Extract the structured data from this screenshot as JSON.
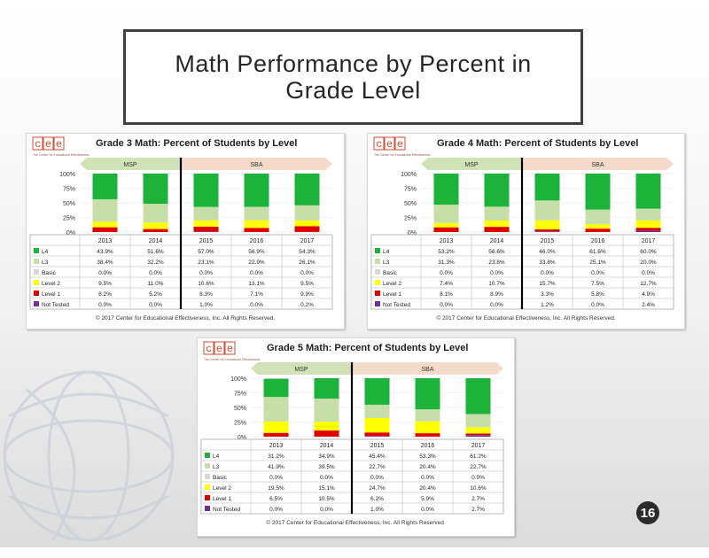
{
  "slide": {
    "title": "Math Performance by Percent in Grade Level",
    "page_number": "16"
  },
  "logo": {
    "letters": [
      "c",
      "e",
      "e"
    ],
    "tagline": "The Center for Educational Effectiveness"
  },
  "colors": {
    "L4": "#1db33b",
    "L3": "#c6dea8",
    "Basic": "#d8d8d8",
    "Level 2": "#ffff00",
    "Level 1": "#e00000",
    "Not Tested": "#7030a0",
    "msp_arrow": "#cfe3b6",
    "sba_arrow": "#f5d9c9"
  },
  "chart_data": [
    {
      "type": "bar",
      "title": "Grade 3 Math: Percent of Students by Level",
      "categories": [
        "2013",
        "2014",
        "2015",
        "2016",
        "2017"
      ],
      "ylim": [
        0,
        100
      ],
      "yticks": [
        "100%",
        "75%",
        "50%",
        "25%",
        "0%"
      ],
      "bands": [
        {
          "label": "MSP",
          "count": 2
        },
        {
          "label": "SBA",
          "count": 3
        }
      ],
      "series": [
        {
          "name": "L4",
          "values": [
            43.9,
            51.6,
            57.0,
            56.9,
            54.3
          ],
          "labels": [
            "43.9%",
            "51.6%",
            "57.0%",
            "56.9%",
            "54.3%"
          ]
        },
        {
          "name": "L3",
          "values": [
            38.4,
            32.2,
            23.1,
            22.9,
            26.1
          ],
          "labels": [
            "38.4%",
            "32.2%",
            "23.1%",
            "22.9%",
            "26.1%"
          ]
        },
        {
          "name": "Basic",
          "values": [
            0,
            0,
            0,
            0,
            0
          ],
          "labels": [
            "0.0%",
            "0.0%",
            "0.0%",
            "0.0%",
            "0.0%"
          ]
        },
        {
          "name": "Level 2",
          "values": [
            9.5,
            11.0,
            10.6,
            13.1,
            9.5
          ],
          "labels": [
            "9.5%",
            "11.0%",
            "10.6%",
            "13.1%",
            "9.5%"
          ]
        },
        {
          "name": "Level 1",
          "values": [
            8.2,
            5.2,
            8.3,
            7.1,
            9.9
          ],
          "labels": [
            "8.2%",
            "5.2%",
            "8.3%",
            "7.1%",
            "9.9%"
          ]
        },
        {
          "name": "Not Tested",
          "values": [
            0,
            0,
            1.0,
            0,
            0.2
          ],
          "labels": [
            "0.0%",
            "0.0%",
            "1.0%",
            "0.0%",
            "0.2%"
          ]
        }
      ],
      "footer": "© 2017 Center for Educational Effectiveness, Inc. All Rights Reserved."
    },
    {
      "type": "bar",
      "title": "Grade 4 Math: Percent of Students by Level",
      "categories": [
        "2013",
        "2014",
        "2015",
        "2016",
        "2017"
      ],
      "ylim": [
        0,
        100
      ],
      "yticks": [
        "100%",
        "75%",
        "50%",
        "25%",
        "0%"
      ],
      "bands": [
        {
          "label": "MSP",
          "count": 2
        },
        {
          "label": "SBA",
          "count": 3
        }
      ],
      "series": [
        {
          "name": "L4",
          "values": [
            53.2,
            56.6,
            46.0,
            61.6,
            60.0
          ],
          "labels": [
            "53.2%",
            "56.6%",
            "46.0%",
            "61.6%",
            "60.0%"
          ]
        },
        {
          "name": "L3",
          "values": [
            31.3,
            23.8,
            33.8,
            25.1,
            20.0
          ],
          "labels": [
            "31.3%",
            "23.8%",
            "33.8%",
            "25.1%",
            "20.0%"
          ]
        },
        {
          "name": "Basic",
          "values": [
            0,
            0,
            0,
            0,
            0
          ],
          "labels": [
            "0.0%",
            "0.0%",
            "0.0%",
            "0.0%",
            "0.0%"
          ]
        },
        {
          "name": "Level 2",
          "values": [
            7.4,
            10.7,
            15.7,
            7.5,
            12.7
          ],
          "labels": [
            "7.4%",
            "10.7%",
            "15.7%",
            "7.5%",
            "12.7%"
          ]
        },
        {
          "name": "Level 1",
          "values": [
            8.1,
            8.9,
            3.3,
            5.8,
            4.9
          ],
          "labels": [
            "8.1%",
            "8.9%",
            "3.3%",
            "5.8%",
            "4.9%"
          ]
        },
        {
          "name": "Not Tested",
          "values": [
            0,
            0,
            1.2,
            0,
            2.4
          ],
          "labels": [
            "0.0%",
            "0.0%",
            "1.2%",
            "0.0%",
            "2.4%"
          ]
        }
      ],
      "footer": "© 2017 Center for Educational Effectiveness, Inc. All Rights Reserved."
    },
    {
      "type": "bar",
      "title": "Grade 5 Math: Percent of Students by Level",
      "categories": [
        "2013",
        "2014",
        "2015",
        "2016",
        "2017"
      ],
      "ylim": [
        0,
        100
      ],
      "yticks": [
        "100%",
        "75%",
        "50%",
        "25%",
        "0%"
      ],
      "bands": [
        {
          "label": "MSP",
          "count": 2
        },
        {
          "label": "SBA",
          "count": 3
        }
      ],
      "series": [
        {
          "name": "L4",
          "values": [
            31.2,
            34.9,
            45.4,
            53.3,
            61.2
          ],
          "labels": [
            "31.2%",
            "34.9%",
            "45.4%",
            "53.3%",
            "61.2%"
          ]
        },
        {
          "name": "L3",
          "values": [
            41.9,
            39.5,
            22.7,
            20.4,
            22.7
          ],
          "labels": [
            "41.9%",
            "39.5%",
            "22.7%",
            "20.4%",
            "22.7%"
          ]
        },
        {
          "name": "Basic",
          "values": [
            0,
            0,
            0,
            0,
            0
          ],
          "labels": [
            "0.0%",
            "0.0%",
            "0.0%",
            "0.0%",
            "0.0%"
          ]
        },
        {
          "name": "Level 2",
          "values": [
            19.5,
            15.1,
            24.7,
            20.4,
            10.6
          ],
          "labels": [
            "19.5%",
            "15.1%",
            "24.7%",
            "20.4%",
            "10.6%"
          ]
        },
        {
          "name": "Level 1",
          "values": [
            6.5,
            10.5,
            6.2,
            5.9,
            2.7
          ],
          "labels": [
            "6.5%",
            "10.5%",
            "6.2%",
            "5.9%",
            "2.7%"
          ]
        },
        {
          "name": "Not Tested",
          "values": [
            0,
            0,
            1.0,
            0,
            2.7
          ],
          "labels": [
            "0.0%",
            "0.0%",
            "1.0%",
            "0.0%",
            "2.7%"
          ]
        }
      ],
      "footer": "© 2017 Center for Educational Effectiveness, Inc. All Rights Reserved."
    }
  ]
}
